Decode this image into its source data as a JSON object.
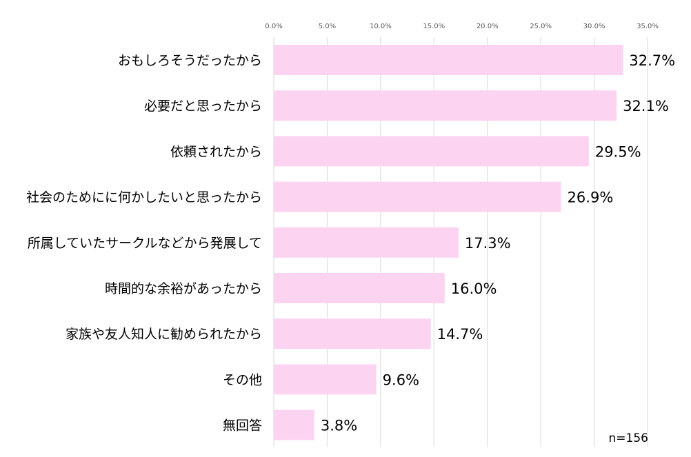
{
  "chart_data": {
    "type": "bar",
    "orientation": "horizontal",
    "categories": [
      "おもしろそうだったから",
      "必要だと思ったから",
      "依頼されたから",
      "社会のためにに何かしたいと思ったから",
      "所属していたサークルなどから発展して",
      "時間的な余裕があったから",
      "家族や友人知人に勧められたから",
      "その他",
      "無回答"
    ],
    "values": [
      32.7,
      32.1,
      29.5,
      26.9,
      17.3,
      16.0,
      14.7,
      9.6,
      3.8
    ],
    "value_labels": [
      "32.7%",
      "32.1%",
      "29.5%",
      "26.9%",
      "17.3%",
      "16.0%",
      "14.7%",
      "9.6%",
      "3.8%"
    ],
    "xlim": [
      0,
      35
    ],
    "xticks": [
      0,
      5,
      10,
      15,
      20,
      25,
      30,
      35
    ],
    "xtick_labels": [
      "0.0%",
      "5.0%",
      "10.0%",
      "15.0%",
      "20.0%",
      "25.0%",
      "30.0%",
      "35.0%"
    ],
    "axis_position": "top",
    "grid": true,
    "bar_color": "#fcd4f2",
    "annotation": "n=156"
  }
}
